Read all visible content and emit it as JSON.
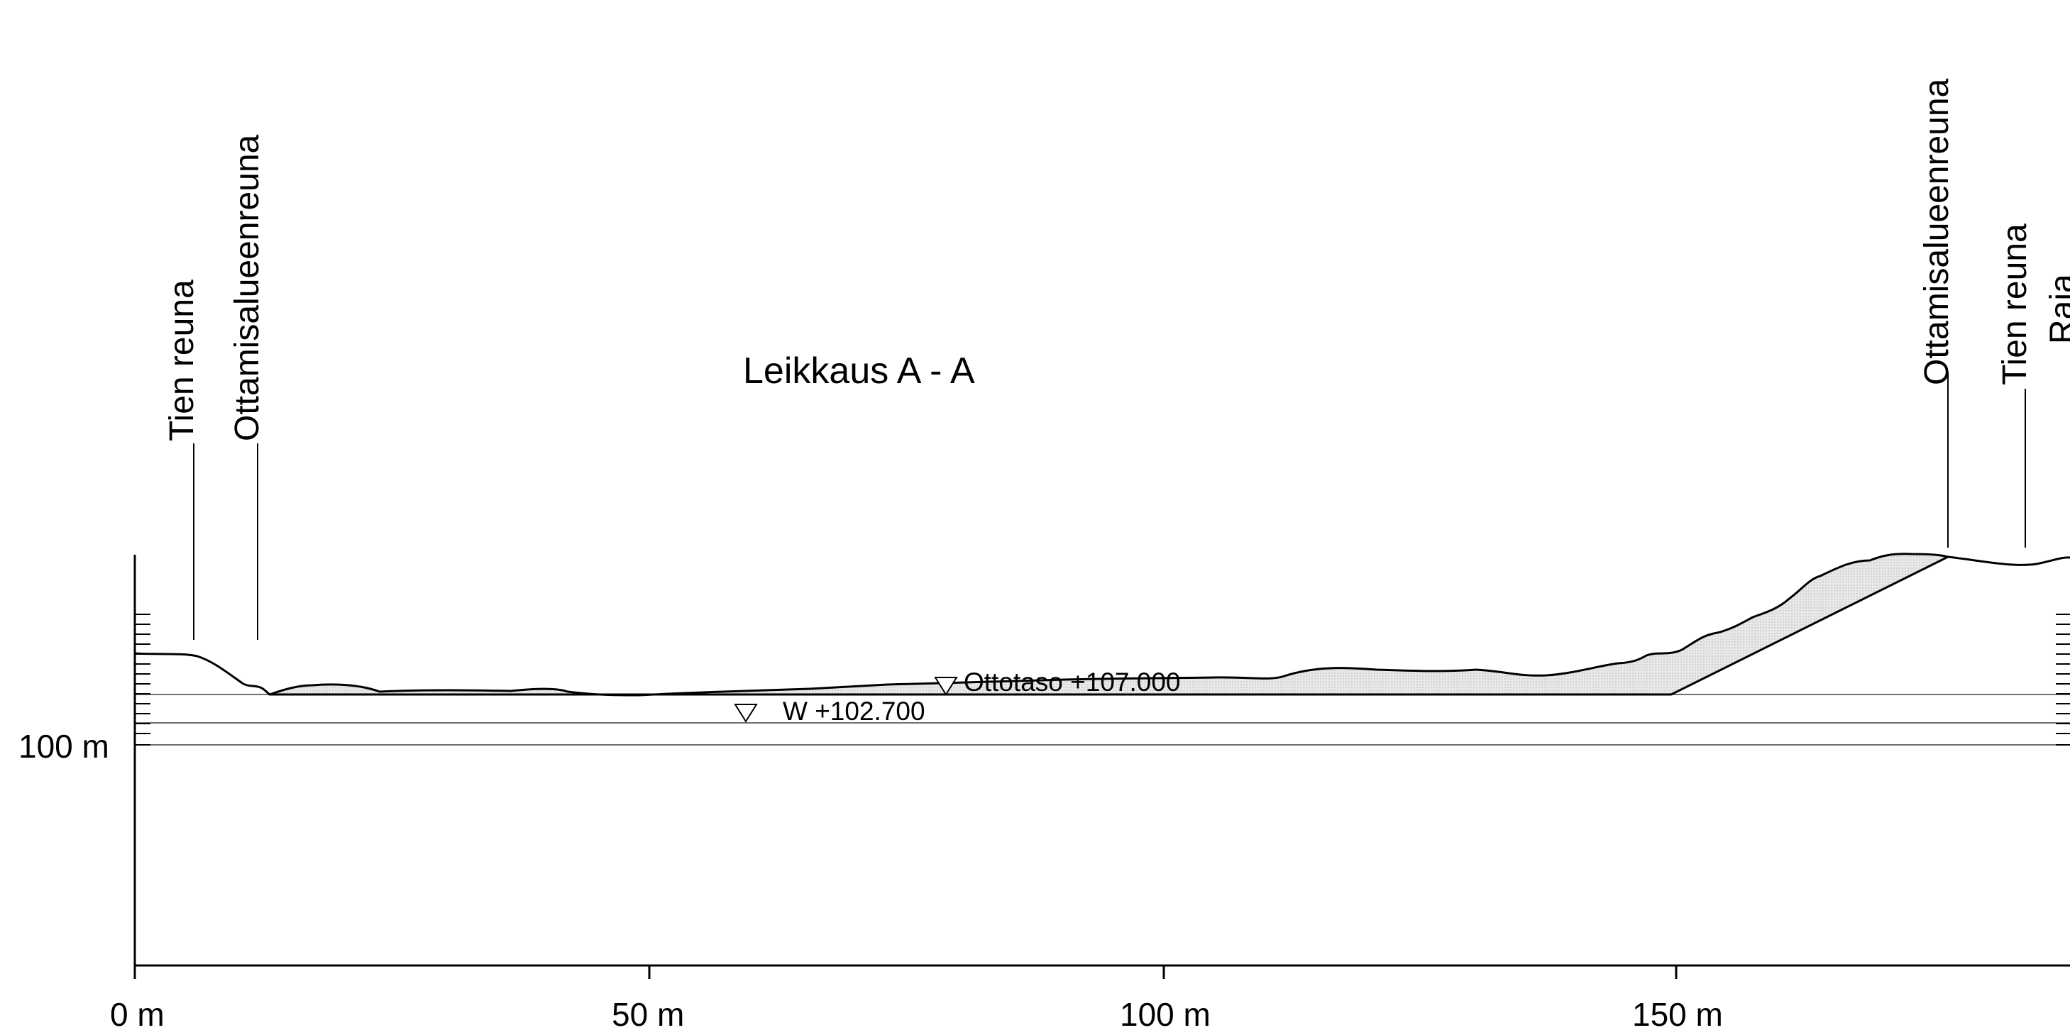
{
  "title": "Leikkaus A - A",
  "x_axis": {
    "ticks": [
      {
        "label": "0 m",
        "value": 0
      },
      {
        "label": "50 m",
        "value": 50
      },
      {
        "label": "100 m",
        "value": 100
      },
      {
        "label": "150 m",
        "value": 150
      }
    ]
  },
  "y_axis": {
    "label": "100 m",
    "value": 100
  },
  "edge_labels": {
    "left_road_edge": "Tien reuna",
    "left_extraction_edge": "Ottamisalueenreuna",
    "right_extraction_edge": "Ottamisalueenreuna",
    "right_road_edge": "Tien reuna",
    "right_boundary_partial": "Raja"
  },
  "levels": {
    "extraction_level": "Ottotaso +107.000",
    "groundwater_level": "W +102.700"
  },
  "colors": {
    "line": "#000000",
    "reference_line": "#707070",
    "fill": "#e6e6e6"
  }
}
